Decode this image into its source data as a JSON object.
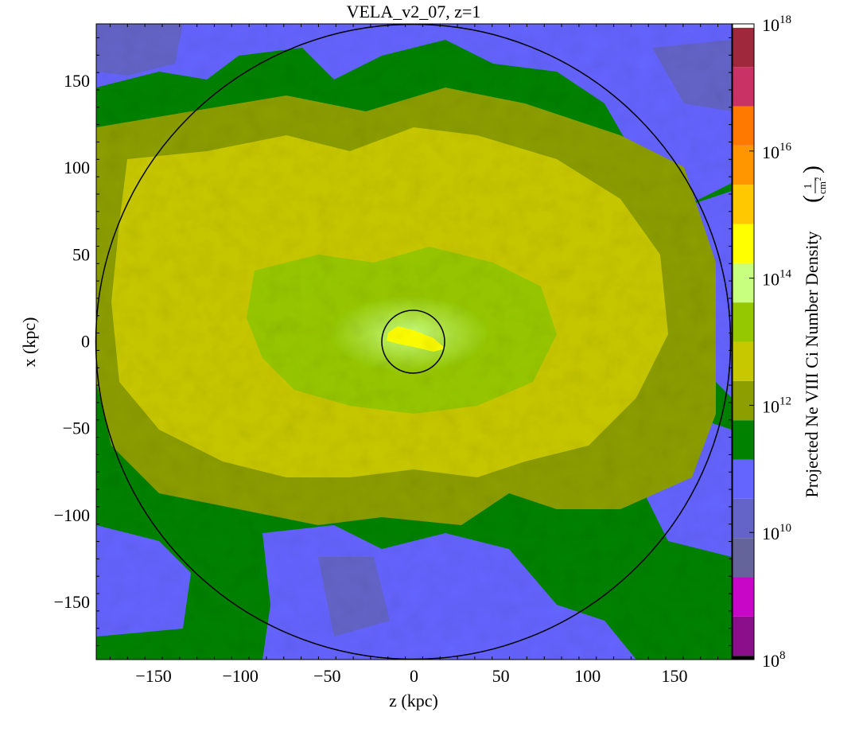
{
  "chart_data": {
    "type": "heatmap",
    "title": "VELA_v2_07, z=1",
    "xlabel": "z (kpc)",
    "ylabel": "x (kpc)",
    "xlim": [
      -183,
      183
    ],
    "ylim": [
      -183,
      183
    ],
    "x_ticks": [
      -150,
      -100,
      -50,
      0,
      50,
      100,
      150
    ],
    "y_ticks": [
      150,
      100,
      50,
      0,
      -50,
      -100,
      -150
    ],
    "x_tick_labels": [
      "−150",
      "−100",
      "−50",
      "0",
      "50",
      "100",
      "150"
    ],
    "y_tick_labels": [
      "150",
      "100",
      "50",
      "0",
      "−50",
      "−100",
      "−150"
    ],
    "colorbar": {
      "label": "Projected Ne VIII Ci Number Density",
      "unit_numerator": "1",
      "unit_denominator": "cm",
      "unit_exponent": "2",
      "scale": "log",
      "range_log10": [
        8,
        18
      ],
      "tick_base": "10",
      "tick_exponents": [
        "18",
        "16",
        "14",
        "12",
        "10",
        "8"
      ],
      "level_colors": [
        "#000000",
        "#8b0f8b",
        "#c806c8",
        "#64649a",
        "#6464c8",
        "#6464ff",
        "#008200",
        "#8c9e00",
        "#c8c800",
        "#96c800",
        "#c8ff7e",
        "#ffff00",
        "#ffc800",
        "#ff9600",
        "#ff7800",
        "#c83264",
        "#a0283c",
        "#ffffff"
      ]
    },
    "circles": [
      {
        "name": "outer-virial-radius",
        "center": [
          0,
          0
        ],
        "radius_kpc": 182
      },
      {
        "name": "inner-galaxy-radius",
        "center": [
          0,
          0
        ],
        "radius_kpc": 18
      }
    ],
    "map_levels_present": [
      {
        "log10_density": "10-10.5",
        "color": "#6464c8"
      },
      {
        "log10_density": "10.5-11",
        "color": "#6464ff"
      },
      {
        "log10_density": "11-11.5",
        "color": "#008200"
      },
      {
        "log10_density": "11.5-12",
        "color": "#8c9e00"
      },
      {
        "log10_density": "12-13",
        "color": "#c8c800"
      },
      {
        "log10_density": "13-13.5",
        "color": "#96c800"
      },
      {
        "log10_density": "13.5-14",
        "color": "#c8ff7e"
      },
      {
        "log10_density": "14-14.5",
        "color": "#ffff00"
      }
    ]
  }
}
